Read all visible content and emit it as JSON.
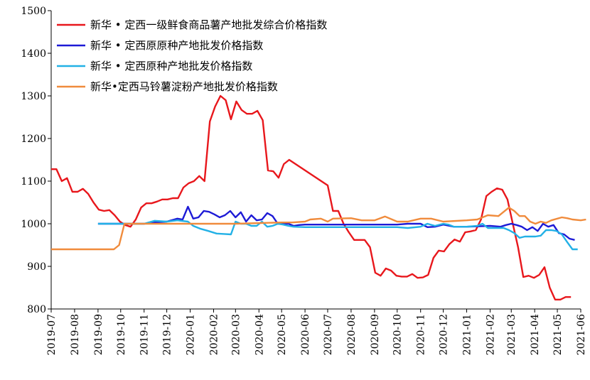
{
  "chart_data": {
    "type": "line",
    "title": "",
    "xlabel": "",
    "ylabel": "",
    "ylim": [
      800,
      1500
    ],
    "yticks": [
      800,
      900,
      1000,
      1100,
      1200,
      1300,
      1400,
      1500
    ],
    "xlim": [
      "2019-07",
      "2021-06"
    ],
    "x_ticks": [
      "2019-07",
      "2019-08",
      "2019-09",
      "2019-10",
      "2019-11",
      "2019-12",
      "2020-01",
      "2020-02",
      "2020-03",
      "2020-04",
      "2020-05",
      "2020-06",
      "2020-07",
      "2020-08",
      "2020-09",
      "2020-10",
      "2020-11",
      "2020-12",
      "2021-01",
      "2021-02",
      "2021-03",
      "2021-04",
      "2021-05",
      "2021-06"
    ],
    "grid": false,
    "legend_position": "top-left",
    "series": [
      {
        "name": "新华 • 定西一级鲜食商品薯产地批发综合价格指数",
        "color": "#e8171c",
        "points": [
          [
            "2019-07-01",
            1128
          ],
          [
            "2019-07-08",
            1128
          ],
          [
            "2019-07-15",
            1100
          ],
          [
            "2019-07-22",
            1107
          ],
          [
            "2019-07-29",
            1075
          ],
          [
            "2019-08-05",
            1075
          ],
          [
            "2019-08-12",
            1082
          ],
          [
            "2019-08-19",
            1070
          ],
          [
            "2019-08-26",
            1050
          ],
          [
            "2019-09-02",
            1033
          ],
          [
            "2019-09-09",
            1030
          ],
          [
            "2019-09-16",
            1032
          ],
          [
            "2019-09-23",
            1020
          ],
          [
            "2019-09-30",
            1005
          ],
          [
            "2019-10-07",
            997
          ],
          [
            "2019-10-14",
            993
          ],
          [
            "2019-10-21",
            1010
          ],
          [
            "2019-10-28",
            1038
          ],
          [
            "2019-11-04",
            1048
          ],
          [
            "2019-11-11",
            1048
          ],
          [
            "2019-11-18",
            1052
          ],
          [
            "2019-11-25",
            1057
          ],
          [
            "2019-12-02",
            1057
          ],
          [
            "2019-12-09",
            1060
          ],
          [
            "2019-12-16",
            1060
          ],
          [
            "2019-12-23",
            1085
          ],
          [
            "2019-12-30",
            1095
          ],
          [
            "2020-01-06",
            1100
          ],
          [
            "2020-01-13",
            1112
          ],
          [
            "2020-01-20",
            1100
          ],
          [
            "2020-01-27",
            1240
          ],
          [
            "2020-02-03",
            1275
          ],
          [
            "2020-02-10",
            1300
          ],
          [
            "2020-02-17",
            1290
          ],
          [
            "2020-02-24",
            1245
          ],
          [
            "2020-03-02",
            1287
          ],
          [
            "2020-03-09",
            1267
          ],
          [
            "2020-03-16",
            1258
          ],
          [
            "2020-03-23",
            1258
          ],
          [
            "2020-03-30",
            1265
          ],
          [
            "2020-04-06",
            1243
          ],
          [
            "2020-04-13",
            1125
          ],
          [
            "2020-04-20",
            1123
          ],
          [
            "2020-04-27",
            1108
          ],
          [
            "2020-05-04",
            1140
          ],
          [
            "2020-05-11",
            1150
          ],
          [
            "2020-07-01",
            1090
          ],
          [
            "2020-07-08",
            1030
          ],
          [
            "2020-07-15",
            1030
          ],
          [
            "2020-07-22",
            1000
          ],
          [
            "2020-07-29",
            980
          ],
          [
            "2020-08-05",
            962
          ],
          [
            "2020-08-12",
            962
          ],
          [
            "2020-08-19",
            962
          ],
          [
            "2020-08-26",
            945
          ],
          [
            "2020-09-02",
            885
          ],
          [
            "2020-09-09",
            878
          ],
          [
            "2020-09-16",
            895
          ],
          [
            "2020-09-23",
            890
          ],
          [
            "2020-09-30",
            878
          ],
          [
            "2020-10-07",
            876
          ],
          [
            "2020-10-14",
            876
          ],
          [
            "2020-10-21",
            882
          ],
          [
            "2020-10-28",
            873
          ],
          [
            "2020-11-04",
            874
          ],
          [
            "2020-11-11",
            880
          ],
          [
            "2020-11-18",
            920
          ],
          [
            "2020-11-25",
            937
          ],
          [
            "2020-12-02",
            935
          ],
          [
            "2020-12-09",
            952
          ],
          [
            "2020-12-16",
            963
          ],
          [
            "2020-12-23",
            958
          ],
          [
            "2020-12-30",
            980
          ],
          [
            "2021-01-06",
            982
          ],
          [
            "2021-01-13",
            985
          ],
          [
            "2021-01-20",
            1010
          ],
          [
            "2021-01-27",
            1065
          ],
          [
            "2021-02-03",
            1075
          ],
          [
            "2021-02-10",
            1083
          ],
          [
            "2021-02-17",
            1080
          ],
          [
            "2021-02-24",
            1057
          ],
          [
            "2021-03-03",
            1000
          ],
          [
            "2021-03-10",
            945
          ],
          [
            "2021-03-17",
            875
          ],
          [
            "2021-03-24",
            878
          ],
          [
            "2021-03-31",
            873
          ],
          [
            "2021-04-07",
            880
          ],
          [
            "2021-04-14",
            898
          ],
          [
            "2021-04-21",
            850
          ],
          [
            "2021-04-28",
            822
          ],
          [
            "2021-05-05",
            822
          ],
          [
            "2021-05-12",
            828
          ],
          [
            "2021-05-19",
            828
          ]
        ]
      },
      {
        "name": "新华 • 定西原原种产地批发价格指数",
        "color": "#1d1ad6",
        "points": [
          [
            "2019-09-01",
            1000
          ],
          [
            "2019-11-01",
            1000
          ],
          [
            "2019-11-15",
            1003
          ],
          [
            "2019-12-01",
            1005
          ],
          [
            "2019-12-15",
            1012
          ],
          [
            "2019-12-22",
            1010
          ],
          [
            "2019-12-29",
            1040
          ],
          [
            "2020-01-05",
            1012
          ],
          [
            "2020-01-12",
            1015
          ],
          [
            "2020-01-19",
            1030
          ],
          [
            "2020-01-26",
            1028
          ],
          [
            "2020-02-02",
            1022
          ],
          [
            "2020-02-09",
            1015
          ],
          [
            "2020-02-16",
            1020
          ],
          [
            "2020-02-23",
            1030
          ],
          [
            "2020-03-01",
            1015
          ],
          [
            "2020-03-08",
            1027
          ],
          [
            "2020-03-15",
            1005
          ],
          [
            "2020-03-22",
            1020
          ],
          [
            "2020-03-29",
            1008
          ],
          [
            "2020-04-05",
            1010
          ],
          [
            "2020-04-12",
            1025
          ],
          [
            "2020-04-19",
            1018
          ],
          [
            "2020-04-26",
            1000
          ],
          [
            "2020-05-03",
            1000
          ],
          [
            "2020-05-10",
            1000
          ],
          [
            "2020-05-17",
            995
          ],
          [
            "2020-05-24",
            997
          ],
          [
            "2020-06-01",
            998
          ],
          [
            "2020-08-01",
            998
          ],
          [
            "2020-10-01",
            998
          ],
          [
            "2020-10-15",
            1000
          ],
          [
            "2020-11-01",
            1000
          ],
          [
            "2020-11-10",
            992
          ],
          [
            "2020-11-20",
            993
          ],
          [
            "2020-12-01",
            998
          ],
          [
            "2020-12-15",
            993
          ],
          [
            "2021-01-01",
            993
          ],
          [
            "2021-02-01",
            995
          ],
          [
            "2021-02-15",
            993
          ],
          [
            "2021-02-22",
            997
          ],
          [
            "2021-03-01",
            1000
          ],
          [
            "2021-03-08",
            997
          ],
          [
            "2021-03-15",
            993
          ],
          [
            "2021-03-22",
            985
          ],
          [
            "2021-03-29",
            992
          ],
          [
            "2021-04-05",
            983
          ],
          [
            "2021-04-12",
            1000
          ],
          [
            "2021-04-19",
            993
          ],
          [
            "2021-04-26",
            997
          ],
          [
            "2021-05-03",
            978
          ],
          [
            "2021-05-10",
            975
          ],
          [
            "2021-05-17",
            965
          ],
          [
            "2021-05-24",
            962
          ]
        ]
      },
      {
        "name": "新华 • 定西原种产地批发价格指数",
        "color": "#23b1e6",
        "points": [
          [
            "2019-09-01",
            1000
          ],
          [
            "2019-10-01",
            1000
          ],
          [
            "2019-11-01",
            1000
          ],
          [
            "2019-11-15",
            1007
          ],
          [
            "2019-12-01",
            1005
          ],
          [
            "2019-12-15",
            1008
          ],
          [
            "2019-12-29",
            1005
          ],
          [
            "2020-01-05",
            995
          ],
          [
            "2020-01-15",
            988
          ],
          [
            "2020-01-25",
            983
          ],
          [
            "2020-02-05",
            977
          ],
          [
            "2020-02-15",
            976
          ],
          [
            "2020-02-24",
            975
          ],
          [
            "2020-03-01",
            1005
          ],
          [
            "2020-03-08",
            1000
          ],
          [
            "2020-03-15",
            1000
          ],
          [
            "2020-03-22",
            995
          ],
          [
            "2020-03-29",
            995
          ],
          [
            "2020-04-05",
            1005
          ],
          [
            "2020-04-12",
            993
          ],
          [
            "2020-04-19",
            995
          ],
          [
            "2020-04-26",
            1000
          ],
          [
            "2020-05-03",
            998
          ],
          [
            "2020-05-10",
            995
          ],
          [
            "2020-05-17",
            993
          ],
          [
            "2020-06-01",
            992
          ],
          [
            "2020-08-01",
            992
          ],
          [
            "2020-10-01",
            992
          ],
          [
            "2020-10-15",
            990
          ],
          [
            "2020-11-01",
            993
          ],
          [
            "2020-11-10",
            1000
          ],
          [
            "2020-11-20",
            995
          ],
          [
            "2020-12-01",
            1000
          ],
          [
            "2020-12-08",
            998
          ],
          [
            "2020-12-15",
            993
          ],
          [
            "2021-01-01",
            993
          ],
          [
            "2021-01-15",
            995
          ],
          [
            "2021-01-22",
            1000
          ],
          [
            "2021-01-29",
            990
          ],
          [
            "2021-02-05",
            990
          ],
          [
            "2021-02-12",
            990
          ],
          [
            "2021-02-19",
            990
          ],
          [
            "2021-02-26",
            985
          ],
          [
            "2021-03-05",
            978
          ],
          [
            "2021-03-12",
            967
          ],
          [
            "2021-03-19",
            970
          ],
          [
            "2021-03-26",
            970
          ],
          [
            "2021-04-02",
            970
          ],
          [
            "2021-04-09",
            972
          ],
          [
            "2021-04-16",
            985
          ],
          [
            "2021-04-23",
            985
          ],
          [
            "2021-04-30",
            983
          ],
          [
            "2021-05-07",
            975
          ],
          [
            "2021-05-14",
            957
          ],
          [
            "2021-05-21",
            940
          ],
          [
            "2021-05-28",
            940
          ]
        ]
      },
      {
        "name": "新华•定西马铃薯淀粉产地批发价格指数",
        "color": "#f08b3c",
        "points": [
          [
            "2019-07-01",
            940
          ],
          [
            "2019-09-15",
            940
          ],
          [
            "2019-09-22",
            940
          ],
          [
            "2019-09-29",
            950
          ],
          [
            "2019-10-06",
            1000
          ],
          [
            "2019-11-01",
            1000
          ],
          [
            "2020-01-01",
            1000
          ],
          [
            "2020-03-01",
            1000
          ],
          [
            "2020-05-01",
            1003
          ],
          [
            "2020-05-15",
            1003
          ],
          [
            "2020-06-01",
            1005
          ],
          [
            "2020-06-08",
            1010
          ],
          [
            "2020-06-22",
            1012
          ],
          [
            "2020-07-01",
            1005
          ],
          [
            "2020-07-08",
            1012
          ],
          [
            "2020-08-01",
            1013
          ],
          [
            "2020-08-15",
            1008
          ],
          [
            "2020-09-01",
            1008
          ],
          [
            "2020-09-15",
            1017
          ],
          [
            "2020-10-01",
            1005
          ],
          [
            "2020-10-15",
            1005
          ],
          [
            "2020-11-01",
            1012
          ],
          [
            "2020-11-15",
            1012
          ],
          [
            "2020-12-01",
            1005
          ],
          [
            "2021-01-01",
            1008
          ],
          [
            "2021-01-15",
            1010
          ],
          [
            "2021-01-29",
            1020
          ],
          [
            "2021-02-12",
            1018
          ],
          [
            "2021-02-26",
            1038
          ],
          [
            "2021-03-05",
            1030
          ],
          [
            "2021-03-12",
            1018
          ],
          [
            "2021-03-19",
            1018
          ],
          [
            "2021-03-26",
            1005
          ],
          [
            "2021-04-02",
            1000
          ],
          [
            "2021-04-09",
            1005
          ],
          [
            "2021-04-16",
            1002
          ],
          [
            "2021-04-23",
            1008
          ],
          [
            "2021-05-07",
            1015
          ],
          [
            "2021-05-14",
            1013
          ],
          [
            "2021-05-21",
            1010
          ],
          [
            "2021-06-01",
            1008
          ],
          [
            "2021-06-08",
            1010
          ]
        ]
      }
    ]
  }
}
